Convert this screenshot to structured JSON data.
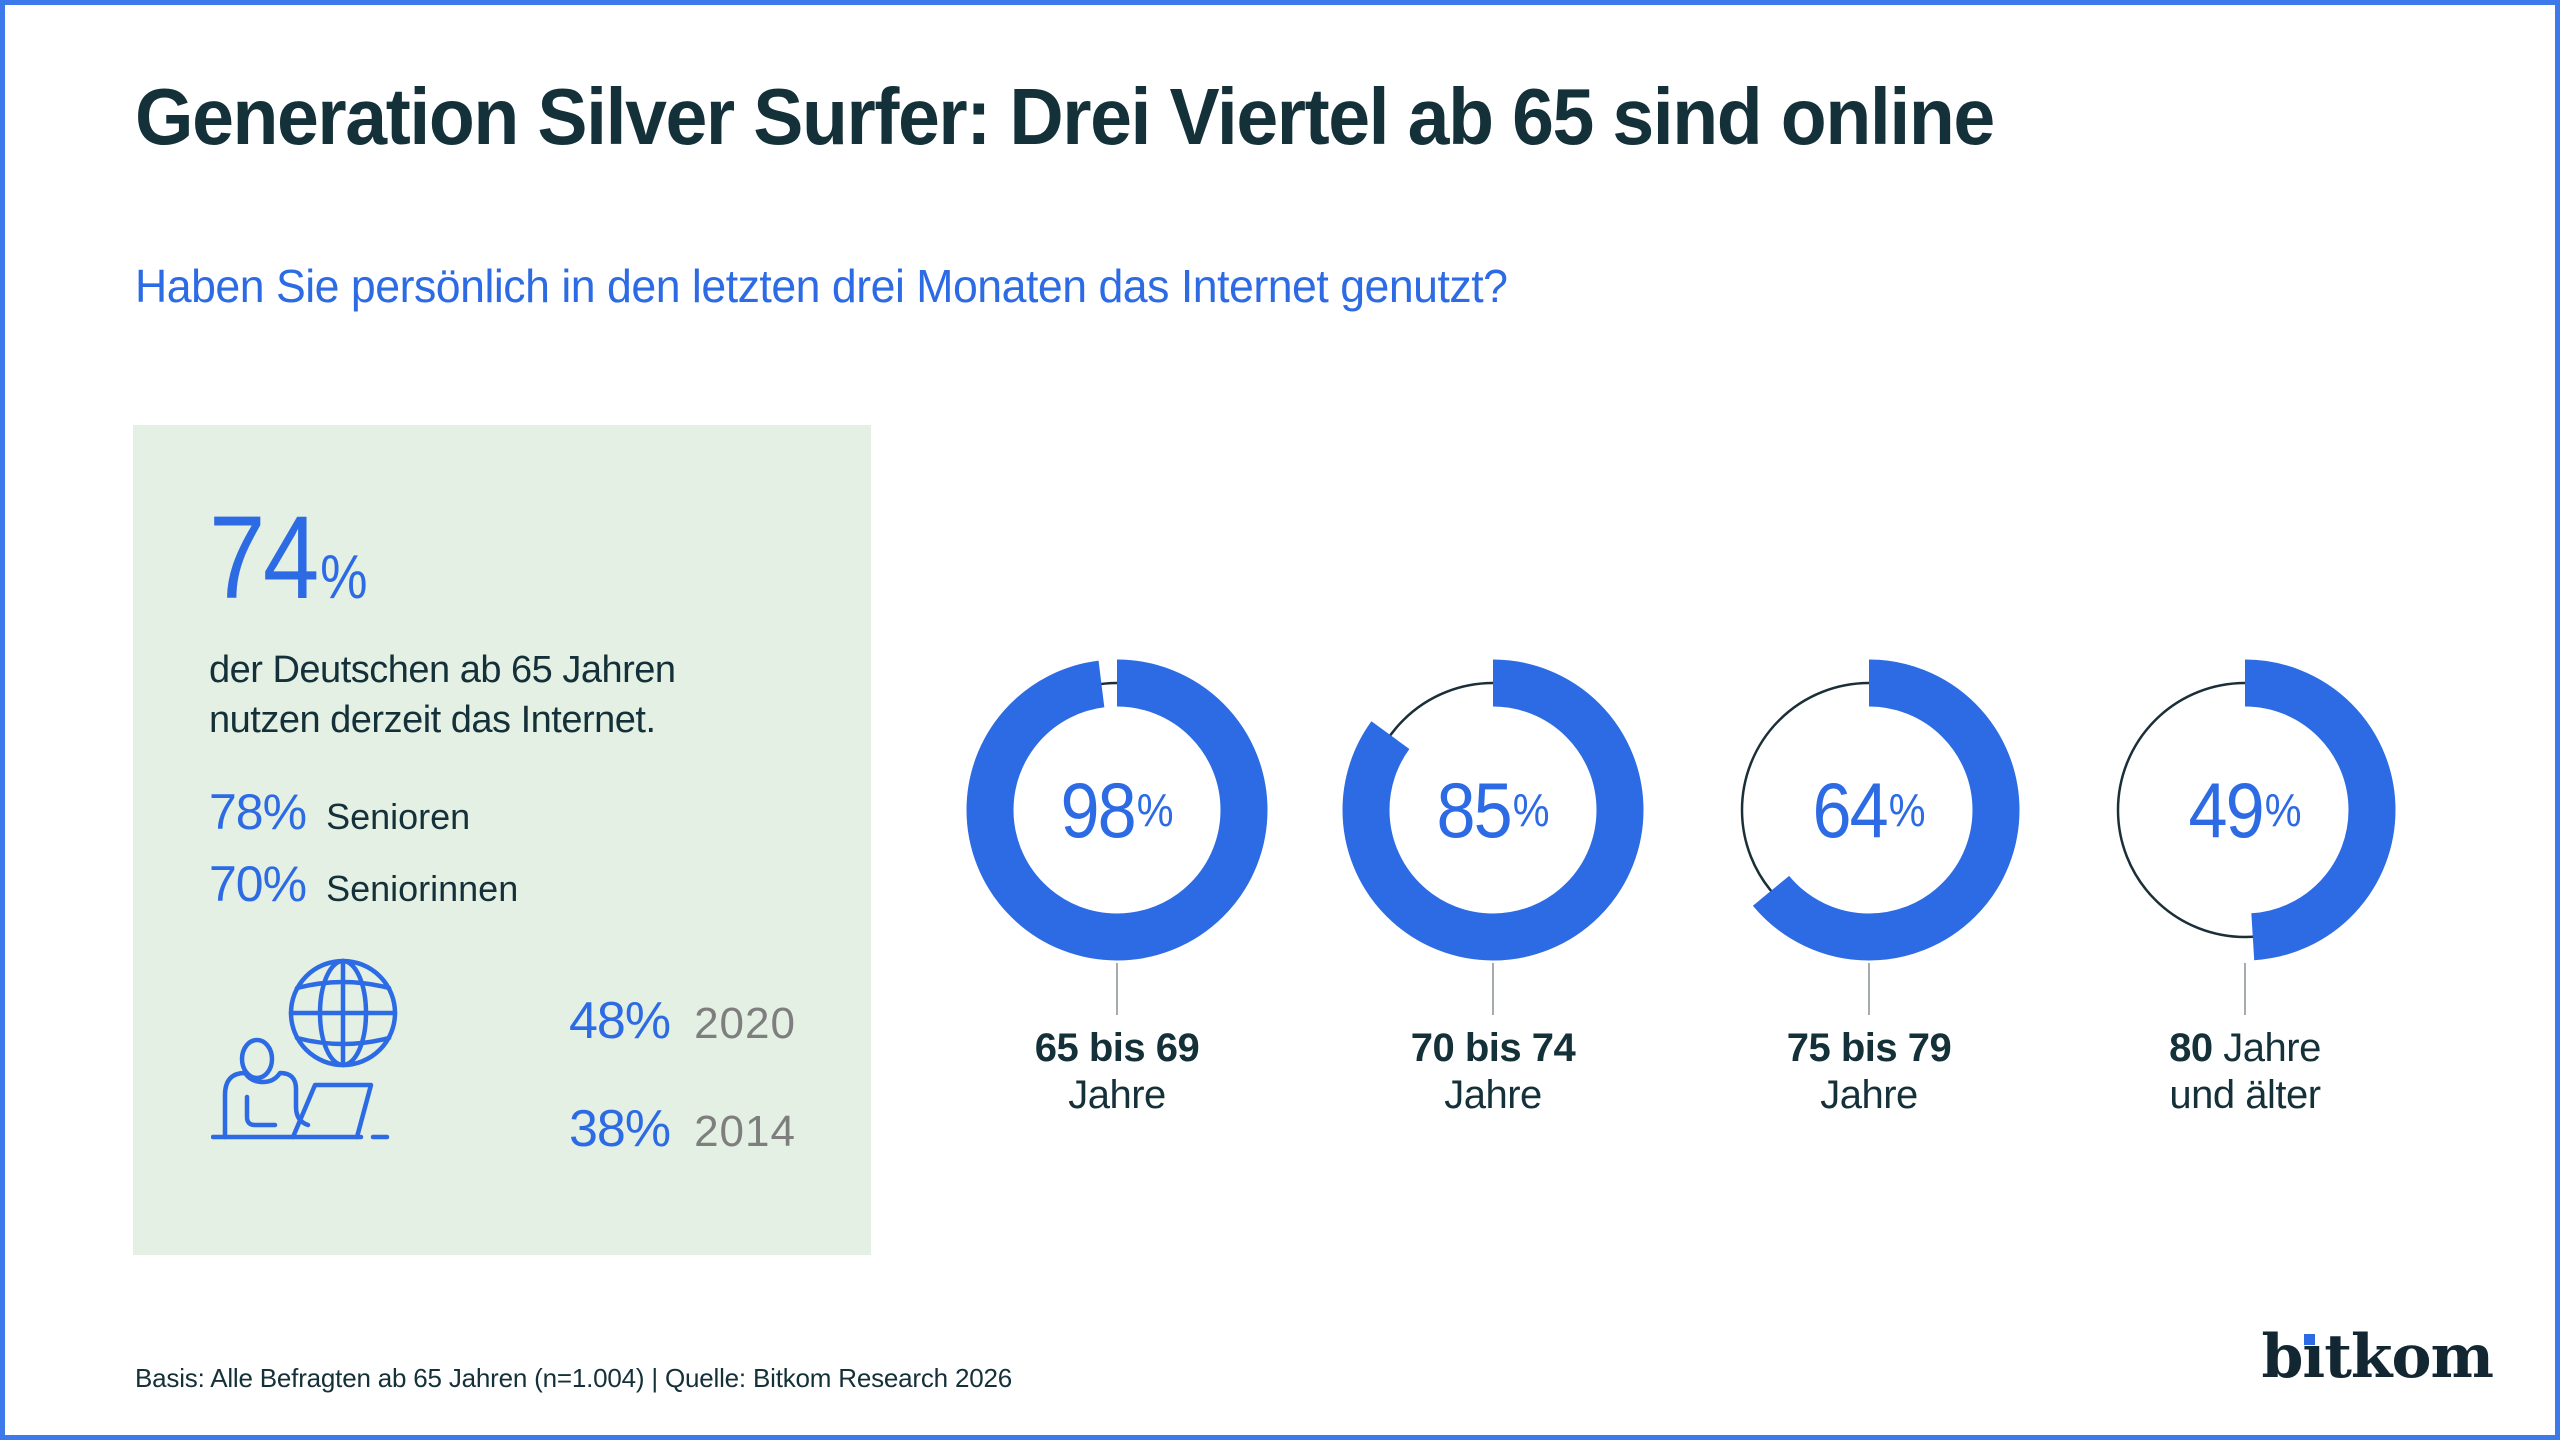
{
  "colors": {
    "accent_blue": "#2d6be5",
    "dark_text": "#143039",
    "year_gray": "#7e7e7e",
    "box_green": "#e4f0e4",
    "leader_gray": "#a6abad",
    "remainder_dark": "#1a2f38",
    "border_blue": "#3d79ea",
    "logo_dark": "#132732"
  },
  "header": {
    "title": "Generation Silver Surfer: Drei Viertel ab 65 sind online",
    "subtitle": "Haben Sie persönlich in den letzten drei Monaten das Internet genutzt?"
  },
  "highlight_box": {
    "stat_value": "74",
    "stat_unit": "%",
    "description": "der Deutschen ab 65 Jahren nutzen derzeit das Internet.",
    "breakdown": [
      {
        "value": "78%",
        "label": "Senioren"
      },
      {
        "value": "70%",
        "label": "Seniorinnen"
      }
    ],
    "icon": "person-laptop-globe-icon",
    "history": [
      {
        "value": "48%",
        "year": "2020"
      },
      {
        "value": "38%",
        "year": "2014"
      }
    ]
  },
  "chart_data": {
    "type": "donut-set",
    "unit": "%",
    "description": "Share of internet users in the last three months by age group",
    "series": [
      {
        "value": 98,
        "label_line1_bold": "65 bis 69",
        "label_line1": "",
        "label_line2": "Jahre"
      },
      {
        "value": 85,
        "label_line1_bold": "70 bis 74",
        "label_line1": "",
        "label_line2": "Jahre"
      },
      {
        "value": 64,
        "label_line1_bold": "75 bis 79",
        "label_line1": "",
        "label_line2": "Jahre"
      },
      {
        "value": 49,
        "label_line1_bold": "80",
        "label_line1": "Jahre",
        "label_line2": "und älter"
      }
    ]
  },
  "footer": {
    "source": "Basis: Alle Befragten ab 65 Jahren (n=1.004) | Quelle: Bitkom Research 2026",
    "brand": {
      "text": "bitkom",
      "pre": "b",
      "i_dotless": "ı",
      "post": "tkom"
    }
  }
}
